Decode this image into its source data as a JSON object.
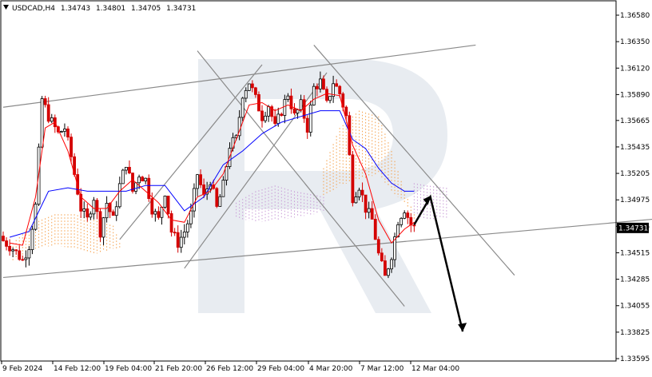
{
  "header": {
    "symbol": "USDCAD,H4",
    "open": "1.34743",
    "high": "1.34801",
    "low": "1.34705",
    "close": "1.34731"
  },
  "colors": {
    "bull_candle": "#000000",
    "bear_candle": "#d40000",
    "tenkan": "#ff0000",
    "kijun": "#0000ff",
    "cloud_bull": "#f5a04a",
    "cloud_bear": "#c89ad6",
    "channel_lines": "#8a8a8a",
    "arrow": "#000000",
    "price_tag_bg": "#000000",
    "watermark": "#d5dce6"
  },
  "chart_data": {
    "type": "candlestick",
    "symbol": "USDCAD",
    "timeframe": "H4",
    "ylim": [
      1.33595,
      1.36695
    ],
    "y_ticks": [
      "1.36580",
      "1.36350",
      "1.36120",
      "1.35890",
      "1.35665",
      "1.35435",
      "1.35205",
      "1.34975",
      "1.34745",
      "1.34515",
      "1.34285",
      "1.34055",
      "1.33825",
      "1.33595"
    ],
    "x_ticks": [
      "9 Feb 2024",
      "14 Feb 12:00",
      "19 Feb 04:00",
      "21 Feb 20:00",
      "26 Feb 12:00",
      "29 Feb 04:00",
      "4 Mar 20:00",
      "7 Mar 12:00",
      "12 Mar 04:00"
    ],
    "current_price": "1.34731",
    "bars": 128,
    "close_path": [
      [
        0,
        1.3462
      ],
      [
        3,
        1.3455
      ],
      [
        6,
        1.3445
      ],
      [
        8,
        1.3458
      ],
      [
        10,
        1.3492
      ],
      [
        12,
        1.3585
      ],
      [
        14,
        1.357
      ],
      [
        17,
        1.3555
      ],
      [
        19,
        1.356
      ],
      [
        21,
        1.3535
      ],
      [
        22,
        1.352
      ],
      [
        24,
        1.349
      ],
      [
        26,
        1.348
      ],
      [
        28,
        1.35
      ],
      [
        30,
        1.347
      ],
      [
        32,
        1.3495
      ],
      [
        34,
        1.348
      ],
      [
        36,
        1.351
      ],
      [
        38,
        1.353
      ],
      [
        40,
        1.3505
      ],
      [
        42,
        1.352
      ],
      [
        44,
        1.3515
      ],
      [
        46,
        1.349
      ],
      [
        48,
        1.348
      ],
      [
        50,
        1.3505
      ],
      [
        52,
        1.347
      ],
      [
        54,
        1.346
      ],
      [
        56,
        1.347
      ],
      [
        58,
        1.3485
      ],
      [
        60,
        1.352
      ],
      [
        62,
        1.35
      ],
      [
        64,
        1.3515
      ],
      [
        66,
        1.349
      ],
      [
        68,
        1.351
      ],
      [
        70,
        1.3545
      ],
      [
        72,
        1.355
      ],
      [
        74,
        1.359
      ],
      [
        76,
        1.36
      ],
      [
        78,
        1.3585
      ],
      [
        80,
        1.357
      ],
      [
        82,
        1.358
      ],
      [
        84,
        1.356
      ],
      [
        86,
        1.3575
      ],
      [
        88,
        1.359
      ],
      [
        90,
        1.357
      ],
      [
        92,
        1.358
      ],
      [
        94,
        1.356
      ],
      [
        96,
        1.3595
      ],
      [
        98,
        1.36
      ],
      [
        100,
        1.358
      ],
      [
        102,
        1.36
      ],
      [
        104,
        1.359
      ],
      [
        106,
        1.357
      ],
      [
        108,
        1.35
      ],
      [
        110,
        1.351
      ],
      [
        112,
        1.349
      ],
      [
        114,
        1.348
      ],
      [
        116,
        1.345
      ],
      [
        118,
        1.343
      ],
      [
        120,
        1.345
      ],
      [
        122,
        1.348
      ],
      [
        124,
        1.349
      ],
      [
        126,
        1.3476
      ],
      [
        127,
        1.34731
      ]
    ],
    "tenkan_path": [
      [
        2,
        1.346
      ],
      [
        6,
        1.3458
      ],
      [
        10,
        1.35
      ],
      [
        13,
        1.356
      ],
      [
        16,
        1.3565
      ],
      [
        20,
        1.354
      ],
      [
        24,
        1.35
      ],
      [
        28,
        1.349
      ],
      [
        32,
        1.349
      ],
      [
        36,
        1.3505
      ],
      [
        40,
        1.3515
      ],
      [
        44,
        1.3505
      ],
      [
        48,
        1.3495
      ],
      [
        52,
        1.348
      ],
      [
        56,
        1.3478
      ],
      [
        60,
        1.35
      ],
      [
        64,
        1.3505
      ],
      [
        68,
        1.352
      ],
      [
        72,
        1.355
      ],
      [
        76,
        1.358
      ],
      [
        80,
        1.3582
      ],
      [
        84,
        1.3575
      ],
      [
        88,
        1.358
      ],
      [
        92,
        1.3575
      ],
      [
        96,
        1.3585
      ],
      [
        100,
        1.359
      ],
      [
        104,
        1.3588
      ],
      [
        108,
        1.3545
      ],
      [
        112,
        1.352
      ],
      [
        116,
        1.348
      ],
      [
        120,
        1.346
      ],
      [
        124,
        1.3472
      ],
      [
        127,
        1.3478
      ]
    ],
    "kijun_path": [
      [
        2,
        1.3465
      ],
      [
        8,
        1.347
      ],
      [
        14,
        1.3505
      ],
      [
        20,
        1.3508
      ],
      [
        26,
        1.3505
      ],
      [
        32,
        1.3505
      ],
      [
        38,
        1.3505
      ],
      [
        44,
        1.351
      ],
      [
        50,
        1.351
      ],
      [
        56,
        1.3488
      ],
      [
        62,
        1.35
      ],
      [
        68,
        1.3528
      ],
      [
        74,
        1.354
      ],
      [
        80,
        1.3555
      ],
      [
        86,
        1.3565
      ],
      [
        92,
        1.357
      ],
      [
        98,
        1.3575
      ],
      [
        104,
        1.3575
      ],
      [
        108,
        1.355
      ],
      [
        112,
        1.3542
      ],
      [
        116,
        1.3525
      ],
      [
        120,
        1.3512
      ],
      [
        124,
        1.3505
      ],
      [
        127,
        1.3505
      ]
    ],
    "cloud_bull_segments": [
      [
        [
          3,
          1.346
        ],
        [
          10,
          1.3478
        ],
        [
          16,
          1.3485
        ],
        [
          22,
          1.3485
        ],
        [
          28,
          1.348
        ],
        [
          34,
          1.3475
        ],
        [
          36,
          1.346
        ]
      ],
      [
        [
          99,
          1.3525
        ],
        [
          104,
          1.356
        ],
        [
          110,
          1.3575
        ],
        [
          116,
          1.357
        ],
        [
          120,
          1.354
        ],
        [
          124,
          1.3505
        ],
        [
          127,
          1.3485
        ]
      ]
    ],
    "cloud_bull_lower": [
      [
        [
          3,
          1.3445
        ],
        [
          10,
          1.3455
        ],
        [
          16,
          1.3458
        ],
        [
          22,
          1.3455
        ],
        [
          28,
          1.345
        ],
        [
          34,
          1.3455
        ],
        [
          36,
          1.3455
        ]
      ],
      [
        [
          99,
          1.35
        ],
        [
          104,
          1.351
        ],
        [
          110,
          1.3515
        ],
        [
          116,
          1.352
        ],
        [
          120,
          1.3505
        ],
        [
          124,
          1.3495
        ],
        [
          127,
          1.348
        ]
      ]
    ],
    "cloud_bear_segments": [
      [
        [
          72,
          1.3495
        ],
        [
          78,
          1.3505
        ],
        [
          84,
          1.351
        ],
        [
          90,
          1.3505
        ],
        [
          96,
          1.3502
        ],
        [
          99,
          1.35
        ]
      ],
      [
        [
          127,
          1.3512
        ],
        [
          131,
          1.351
        ],
        [
          137,
          1.3508
        ]
      ]
    ],
    "cloud_bear_lower": [
      [
        [
          72,
          1.3482
        ],
        [
          78,
          1.3478
        ],
        [
          84,
          1.348
        ],
        [
          90,
          1.3482
        ],
        [
          96,
          1.3485
        ],
        [
          99,
          1.3488
        ]
      ],
      [
        [
          127,
          1.3485
        ],
        [
          131,
          1.348
        ],
        [
          137,
          1.3482
        ]
      ]
    ],
    "trendlines": [
      {
        "p1": [
          0,
          1.3578
        ],
        "p2": [
          146,
          1.3632
        ]
      },
      {
        "p1": [
          0,
          1.343
        ],
        "p2": [
          210,
          1.3483
        ]
      },
      {
        "p1": [
          60,
          1.3627
        ],
        "p2": [
          124,
          1.3405
        ]
      },
      {
        "p1": [
          96,
          1.3632
        ],
        "p2": [
          158,
          1.3432
        ]
      },
      {
        "p1": [
          36,
          1.3463
        ],
        "p2": [
          80,
          1.3615
        ]
      },
      {
        "p1": [
          56,
          1.3438
        ],
        "p2": [
          100,
          1.3608
        ]
      }
    ],
    "forecast_arrow": [
      [
        127,
        1.3476
      ],
      [
        132,
        1.35
      ],
      [
        142,
        1.3383
      ]
    ]
  }
}
